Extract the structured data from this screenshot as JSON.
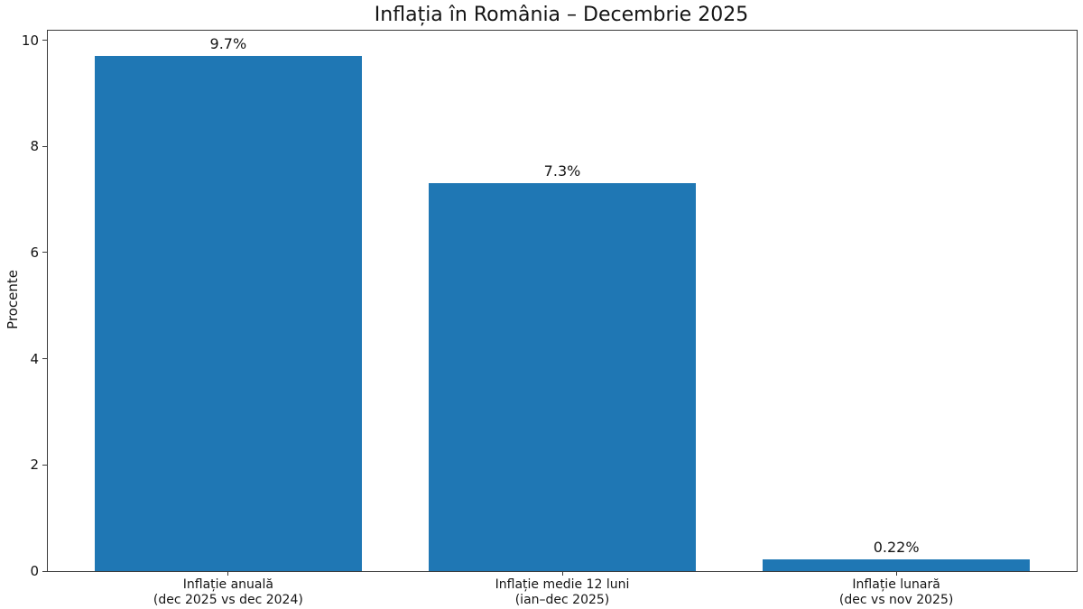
{
  "figure": {
    "title": "Inflația în România – Decembrie 2025",
    "ylabel": "Procente"
  },
  "chart_data": {
    "type": "bar",
    "title": "Inflația în România – Decembrie 2025",
    "xlabel": "",
    "ylabel": "Procente",
    "categories": [
      "Inflație anuală\n(dec 2025 vs dec 2024)",
      "Inflație medie 12 luni\n(ian–dec 2025)",
      "Inflație lunară\n(dec vs nov 2025)"
    ],
    "values": [
      9.7,
      7.3,
      0.22
    ],
    "bar_labels": [
      "9.7%",
      "7.3%",
      "0.22%"
    ],
    "yticks": [
      0,
      2,
      4,
      6,
      8,
      10
    ],
    "ylim": [
      0,
      10.18
    ],
    "xlim": [
      -0.54,
      2.54
    ],
    "x_positions": [
      0,
      1,
      2
    ],
    "bar_width_units": 0.8,
    "bar_color": "#1f77b4",
    "grid": false,
    "legend_position": "none"
  }
}
